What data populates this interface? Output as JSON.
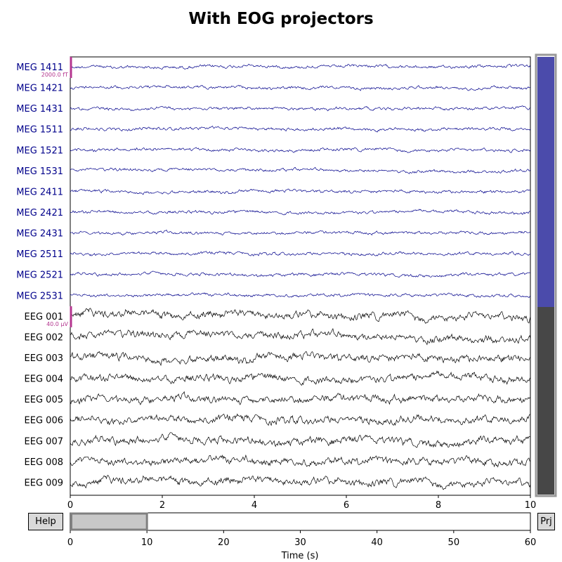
{
  "title": "With EOG projectors",
  "colors": {
    "meg": "#00008b",
    "eeg": "#000000",
    "scale_bar": "#b4358f",
    "scroll_meg": "#4b4bab",
    "scroll_eeg": "#474747",
    "scroll_border": "#999999",
    "time_window": "#c8c8c8"
  },
  "channels": [
    {
      "name": "MEG 1411",
      "type": "meg"
    },
    {
      "name": "MEG 1421",
      "type": "meg"
    },
    {
      "name": "MEG 1431",
      "type": "meg"
    },
    {
      "name": "MEG 1511",
      "type": "meg"
    },
    {
      "name": "MEG 1521",
      "type": "meg"
    },
    {
      "name": "MEG 1531",
      "type": "meg"
    },
    {
      "name": "MEG 2411",
      "type": "meg"
    },
    {
      "name": "MEG 2421",
      "type": "meg"
    },
    {
      "name": "MEG 2431",
      "type": "meg"
    },
    {
      "name": "MEG 2511",
      "type": "meg"
    },
    {
      "name": "MEG 2521",
      "type": "meg"
    },
    {
      "name": "MEG 2531",
      "type": "meg"
    },
    {
      "name": "EEG 001",
      "type": "eeg"
    },
    {
      "name": "EEG 002",
      "type": "eeg"
    },
    {
      "name": "EEG 003",
      "type": "eeg"
    },
    {
      "name": "EEG 004",
      "type": "eeg"
    },
    {
      "name": "EEG 005",
      "type": "eeg"
    },
    {
      "name": "EEG 006",
      "type": "eeg"
    },
    {
      "name": "EEG 007",
      "type": "eeg"
    },
    {
      "name": "EEG 008",
      "type": "eeg"
    },
    {
      "name": "EEG 009",
      "type": "eeg"
    }
  ],
  "scale_bars": [
    {
      "label": "2000.0 fT",
      "channel": "MEG 1411"
    },
    {
      "label": "40.0 µV",
      "channel": "EEG 001"
    }
  ],
  "time_axis": {
    "range": [
      0,
      10
    ],
    "ticks": [
      "0",
      "2",
      "4",
      "6",
      "8",
      "10"
    ]
  },
  "overview_axis": {
    "range": [
      0,
      60
    ],
    "ticks": [
      "0",
      "10",
      "20",
      "30",
      "40",
      "50",
      "60"
    ],
    "xlabel": "Time (s)",
    "window": [
      0,
      10
    ]
  },
  "scrollbar": {
    "meg_fraction": 12,
    "eeg_fraction": 9
  },
  "buttons": {
    "help_label": "Help",
    "proj_label": "Prj"
  }
}
